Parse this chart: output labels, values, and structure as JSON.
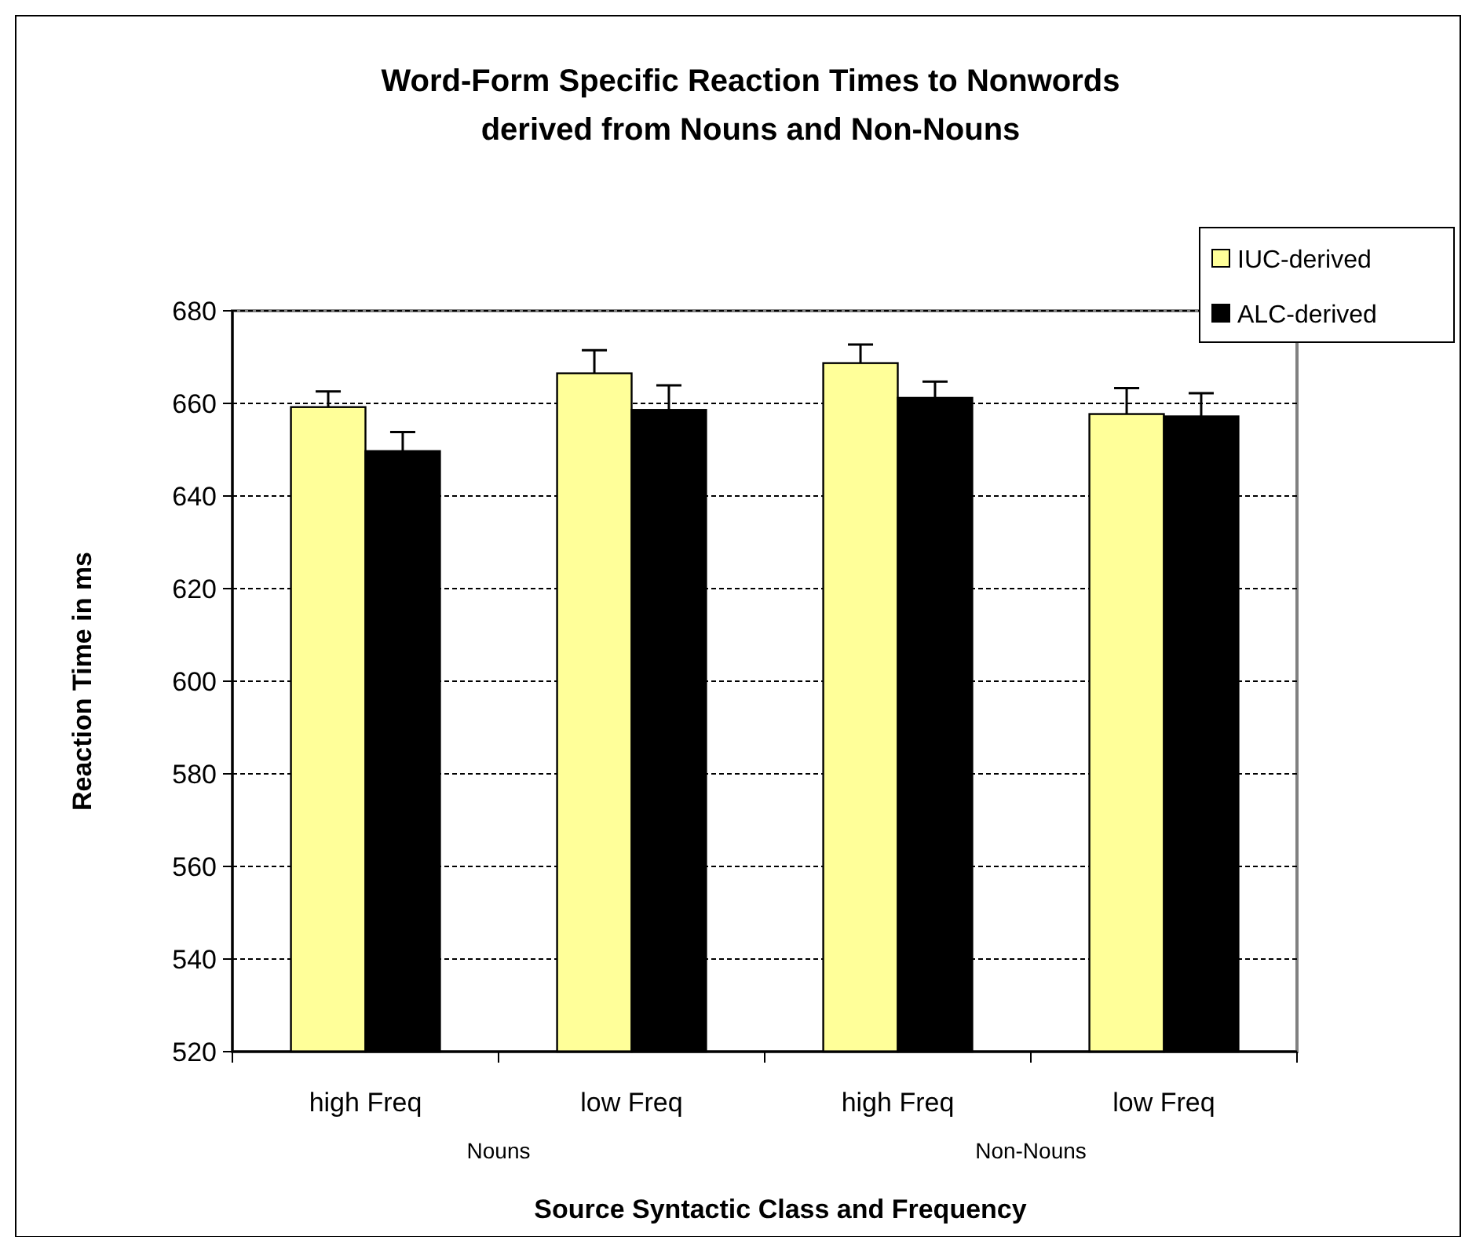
{
  "chart_data": {
    "type": "bar",
    "title": "Word-Form Specific Reaction Times to Nonwords\nderived from Nouns and Non-Nouns",
    "xlabel": "Source Syntactic Class and Frequency",
    "ylabel": "Reaction Time in ms",
    "categories": [
      "high Freq",
      "low Freq",
      "high Freq",
      "low Freq"
    ],
    "series": [
      {
        "name": "IUC-derived",
        "color": "#ffff99",
        "values": [
          659.2,
          666.5,
          668.7,
          657.7
        ],
        "errors": [
          [
            659.2,
            662.6
          ],
          [
            666.5,
            671.5
          ],
          [
            668.7,
            672.7
          ],
          [
            657.7,
            663.3
          ]
        ]
      },
      {
        "name": "ALC-derived",
        "color": "#000000",
        "values": [
          649.7,
          658.6,
          661.2,
          657.2
        ],
        "errors": [
          [
            649.7,
            653.8
          ],
          [
            658.6,
            663.9
          ],
          [
            661.2,
            664.7
          ],
          [
            657.2,
            662.2
          ]
        ]
      }
    ],
    "ylim": [
      520,
      680
    ],
    "yticks": [
      520,
      540,
      560,
      580,
      600,
      620,
      640,
      660,
      680
    ],
    "grid": "y",
    "legend": "top right",
    "annotations": [
      "Nouns",
      "Non-Nouns"
    ]
  }
}
